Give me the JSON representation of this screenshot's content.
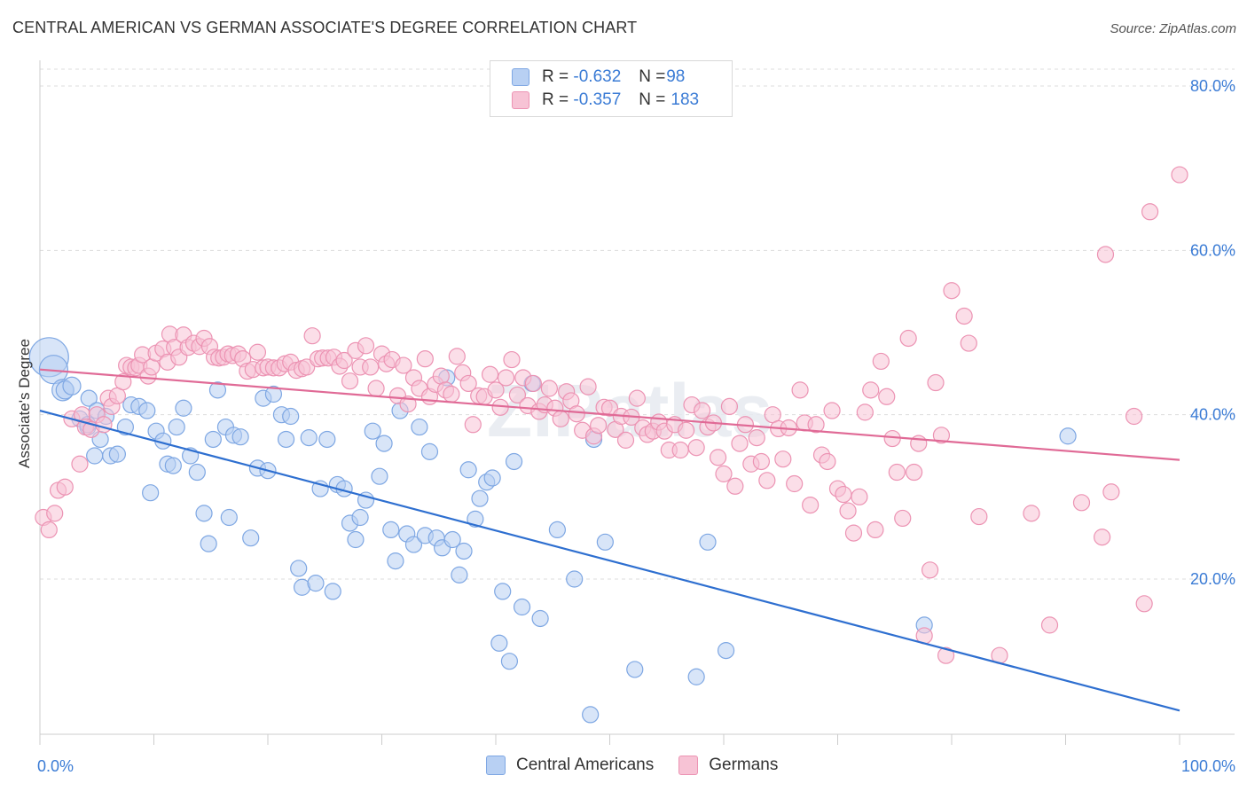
{
  "title": "CENTRAL AMERICAN VS GERMAN ASSOCIATE'S DEGREE CORRELATION CHART",
  "source": "Source: ZipAtlas.com",
  "watermark": "ZIPatlas",
  "legend": {
    "rows": [
      {
        "r_label": "R =",
        "r_value": "-0.632",
        "n_label": "N =",
        "n_value": "98"
      },
      {
        "r_label": "R =",
        "r_value": "-0.357",
        "n_label": "N =",
        "n_value": "183"
      }
    ]
  },
  "colors": {
    "blue_fill": "#b8d0f3",
    "blue_stroke": "#7ea7e3",
    "blue_line": "#2e6fd0",
    "pink_fill": "#f7c3d5",
    "pink_stroke": "#ec93b3",
    "pink_line": "#e06a96",
    "tick_label": "#3a7bd5",
    "grid": "#dddddd"
  },
  "chart_data": {
    "type": "scatter",
    "title": "CENTRAL AMERICAN VS GERMAN ASSOCIATE'S DEGREE CORRELATION CHART",
    "xlabel": "",
    "ylabel": "Associate's Degree",
    "xlim": [
      0,
      100
    ],
    "ylim": [
      0,
      82
    ],
    "x_tick_labels": [
      "0.0%",
      "100.0%"
    ],
    "y_ticks": [
      20,
      40,
      60,
      80
    ],
    "y_tick_labels": [
      "20.0%",
      "40.0%",
      "60.0%",
      "80.0%"
    ],
    "grid": "horizontal dashed",
    "legend_placement": "top-center",
    "series": [
      {
        "name": "Central Americans",
        "trend": {
          "x": [
            0,
            100
          ],
          "y": [
            40.5,
            4.0
          ]
        },
        "points": [
          [
            0.8,
            47,
            22
          ],
          [
            1.2,
            45.5,
            16
          ],
          [
            2,
            43,
            12
          ],
          [
            2.2,
            43,
            10
          ],
          [
            2.8,
            43.5,
            10
          ],
          [
            3.5,
            39.5,
            9
          ],
          [
            4.2,
            38.5,
            9
          ],
          [
            4.2,
            38.8,
            9
          ],
          [
            4.3,
            42,
            9
          ],
          [
            4.8,
            35,
            9
          ],
          [
            5,
            40.5,
            9
          ],
          [
            5.3,
            37,
            9
          ],
          [
            5.8,
            39.8,
            9
          ],
          [
            6.2,
            35,
            9
          ],
          [
            6.8,
            35.2,
            9
          ],
          [
            7.5,
            38.5,
            9
          ],
          [
            8,
            41.2,
            9
          ],
          [
            8.7,
            41,
            9
          ],
          [
            9.4,
            40.5,
            9
          ],
          [
            9.7,
            30.5,
            9
          ],
          [
            10.2,
            38,
            9
          ],
          [
            10.8,
            36.8,
            9
          ],
          [
            11.2,
            34,
            9
          ],
          [
            11.7,
            33.8,
            9
          ],
          [
            12,
            38.5,
            9
          ],
          [
            12.6,
            40.8,
            9
          ],
          [
            13.2,
            35,
            9
          ],
          [
            13.8,
            33,
            9
          ],
          [
            14.4,
            28,
            9
          ],
          [
            14.8,
            24.3,
            9
          ],
          [
            15.2,
            37,
            9
          ],
          [
            15.6,
            43,
            9
          ],
          [
            16.3,
            38.5,
            9
          ],
          [
            16.6,
            27.5,
            9
          ],
          [
            17,
            37.5,
            9
          ],
          [
            17.6,
            37.3,
            9
          ],
          [
            18.5,
            25,
            9
          ],
          [
            19.1,
            33.5,
            9
          ],
          [
            19.6,
            42,
            9
          ],
          [
            20,
            33.2,
            9
          ],
          [
            20.5,
            42.5,
            9
          ],
          [
            21.2,
            40,
            9
          ],
          [
            21.6,
            37,
            9
          ],
          [
            22,
            39.8,
            9
          ],
          [
            22.7,
            21.3,
            9
          ],
          [
            23,
            19,
            9
          ],
          [
            23.6,
            37.2,
            9
          ],
          [
            24.2,
            19.5,
            9
          ],
          [
            24.6,
            31,
            9
          ],
          [
            25.2,
            37,
            9
          ],
          [
            25.7,
            18.5,
            9
          ],
          [
            26.1,
            31.5,
            9
          ],
          [
            26.7,
            31,
            9
          ],
          [
            27.2,
            26.8,
            9
          ],
          [
            27.7,
            24.8,
            9
          ],
          [
            28.1,
            27.5,
            9
          ],
          [
            28.6,
            29.6,
            9
          ],
          [
            29.2,
            38,
            9
          ],
          [
            29.8,
            32.5,
            9
          ],
          [
            30.2,
            36.5,
            9
          ],
          [
            30.8,
            26,
            9
          ],
          [
            31.2,
            22.2,
            9
          ],
          [
            31.6,
            40.5,
            9
          ],
          [
            32.2,
            25.5,
            9
          ],
          [
            32.8,
            24.2,
            9
          ],
          [
            33.3,
            38.5,
            9
          ],
          [
            33.8,
            25.3,
            9
          ],
          [
            34.2,
            35.5,
            9
          ],
          [
            34.8,
            25,
            9
          ],
          [
            35.3,
            23.8,
            9
          ],
          [
            35.7,
            44.5,
            9
          ],
          [
            36.2,
            24.8,
            9
          ],
          [
            36.8,
            20.5,
            9
          ],
          [
            37.2,
            23.4,
            9
          ],
          [
            37.6,
            33.3,
            9
          ],
          [
            38.2,
            27.3,
            9
          ],
          [
            38.6,
            29.8,
            9
          ],
          [
            39.2,
            31.8,
            9
          ],
          [
            39.7,
            32.3,
            9
          ],
          [
            40.3,
            12.2,
            9
          ],
          [
            40.6,
            18.5,
            9
          ],
          [
            41.2,
            10,
            9
          ],
          [
            41.6,
            34.3,
            9
          ],
          [
            42.3,
            16.6,
            9
          ],
          [
            43.2,
            43.8,
            9
          ],
          [
            43.9,
            15.2,
            9
          ],
          [
            45.4,
            26,
            9
          ],
          [
            46.9,
            20,
            9
          ],
          [
            48.3,
            3.5,
            9
          ],
          [
            48.6,
            37,
            9
          ],
          [
            49.6,
            24.5,
            9
          ],
          [
            52.2,
            9,
            9
          ],
          [
            57.6,
            8.1,
            9
          ],
          [
            58.6,
            24.5,
            9
          ],
          [
            60.2,
            11.3,
            9
          ],
          [
            77.6,
            14.4,
            9
          ],
          [
            90.2,
            37.4,
            9
          ]
        ]
      },
      {
        "name": "Germans",
        "trend": {
          "x": [
            0,
            100
          ],
          "y": [
            45.5,
            34.5
          ]
        },
        "points": [
          [
            0.3,
            27.5
          ],
          [
            0.8,
            26
          ],
          [
            1.3,
            28
          ],
          [
            1.6,
            30.8
          ],
          [
            2.2,
            31.2
          ],
          [
            2.8,
            39.5
          ],
          [
            3.5,
            34
          ],
          [
            3.7,
            40
          ],
          [
            4,
            38.5
          ],
          [
            4.5,
            38.2
          ],
          [
            5,
            40
          ],
          [
            5.6,
            38.8
          ],
          [
            6,
            42
          ],
          [
            6.3,
            41
          ],
          [
            6.8,
            42.3
          ],
          [
            7.3,
            44
          ],
          [
            7.6,
            46
          ],
          [
            8,
            45.8
          ],
          [
            8.4,
            45.7
          ],
          [
            8.7,
            46
          ],
          [
            9,
            47.3
          ],
          [
            9.5,
            44.7
          ],
          [
            9.8,
            45.8
          ],
          [
            10.2,
            47.5
          ],
          [
            10.8,
            48
          ],
          [
            11.2,
            46.4
          ],
          [
            11.4,
            49.8
          ],
          [
            11.8,
            48.2
          ],
          [
            12.2,
            47
          ],
          [
            12.6,
            49.7
          ],
          [
            13,
            48.2
          ],
          [
            13.5,
            48.7
          ],
          [
            14,
            48.3
          ],
          [
            14.4,
            49.3
          ],
          [
            14.9,
            48.3
          ],
          [
            15.3,
            47
          ],
          [
            15.7,
            46.9
          ],
          [
            16.1,
            47
          ],
          [
            16.5,
            47.4
          ],
          [
            16.9,
            47.2
          ],
          [
            17.4,
            47.4
          ],
          [
            17.8,
            46.8
          ],
          [
            18.2,
            45.3
          ],
          [
            18.7,
            45.5
          ],
          [
            19.1,
            47.6
          ],
          [
            19.6,
            45.7
          ],
          [
            20,
            45.8
          ],
          [
            20.5,
            45.7
          ],
          [
            21,
            45.7
          ],
          [
            21.5,
            46.2
          ],
          [
            22,
            46.4
          ],
          [
            22.5,
            45.4
          ],
          [
            23,
            45.6
          ],
          [
            23.4,
            45.8
          ],
          [
            23.9,
            49.6
          ],
          [
            24.4,
            46.8
          ],
          [
            24.8,
            46.9
          ],
          [
            25.3,
            46.9
          ],
          [
            25.8,
            47
          ],
          [
            26.3,
            45.9
          ],
          [
            26.7,
            46.6
          ],
          [
            27.2,
            44.1
          ],
          [
            27.7,
            47.8
          ],
          [
            28.1,
            45.8
          ],
          [
            28.6,
            48.4
          ],
          [
            29,
            45.8
          ],
          [
            29.5,
            43.2
          ],
          [
            30,
            47.4
          ],
          [
            30.4,
            46.2
          ],
          [
            30.9,
            46.7
          ],
          [
            31.4,
            42.3
          ],
          [
            31.9,
            46
          ],
          [
            32.3,
            41.3
          ],
          [
            32.8,
            44.5
          ],
          [
            33.3,
            43.2
          ],
          [
            33.8,
            46.8
          ],
          [
            34.2,
            42.2
          ],
          [
            34.7,
            43.7
          ],
          [
            35.2,
            44.7
          ],
          [
            35.6,
            43
          ],
          [
            36.1,
            42.5
          ],
          [
            36.6,
            47.1
          ],
          [
            37.1,
            45.1
          ],
          [
            37.6,
            43.8
          ],
          [
            38,
            38.8
          ],
          [
            38.5,
            42.3
          ],
          [
            39,
            42.2
          ],
          [
            39.5,
            44.9
          ],
          [
            40,
            43
          ],
          [
            40.4,
            40.9
          ],
          [
            40.9,
            44.5
          ],
          [
            41.4,
            46.7
          ],
          [
            41.9,
            42.4
          ],
          [
            42.4,
            44.5
          ],
          [
            42.8,
            41.1
          ],
          [
            43.3,
            43.8
          ],
          [
            43.8,
            40.4
          ],
          [
            44.3,
            41.2
          ],
          [
            44.7,
            43.2
          ],
          [
            45.2,
            40.8
          ],
          [
            45.7,
            39.5
          ],
          [
            46.2,
            42.8
          ],
          [
            46.6,
            41.7
          ],
          [
            47.1,
            40.1
          ],
          [
            47.6,
            38.1
          ],
          [
            48.1,
            43.4
          ],
          [
            48.6,
            37.4
          ],
          [
            49,
            38.7
          ],
          [
            49.5,
            40.9
          ],
          [
            50,
            40.8
          ],
          [
            50.5,
            38.2
          ],
          [
            51,
            39.8
          ],
          [
            51.4,
            36.9
          ],
          [
            51.9,
            39.7
          ],
          [
            52.4,
            42
          ],
          [
            52.9,
            38.4
          ],
          [
            53.3,
            37.6
          ],
          [
            53.8,
            38
          ],
          [
            54.3,
            39.1
          ],
          [
            54.8,
            38
          ],
          [
            55.2,
            35.7
          ],
          [
            55.7,
            38.8
          ],
          [
            56.2,
            35.7
          ],
          [
            56.7,
            38.1
          ],
          [
            57.2,
            41.2
          ],
          [
            57.6,
            36
          ],
          [
            58.1,
            40.5
          ],
          [
            58.6,
            38.5
          ],
          [
            59.1,
            39
          ],
          [
            59.5,
            34.8
          ],
          [
            60,
            32.8
          ],
          [
            60.5,
            41
          ],
          [
            61,
            31.3
          ],
          [
            61.4,
            36.5
          ],
          [
            61.9,
            38.8
          ],
          [
            62.4,
            34
          ],
          [
            62.9,
            37.2
          ],
          [
            63.3,
            34.3
          ],
          [
            63.8,
            32
          ],
          [
            64.3,
            40
          ],
          [
            64.8,
            38.3
          ],
          [
            65.2,
            34.6
          ],
          [
            65.7,
            38.4
          ],
          [
            66.2,
            31.6
          ],
          [
            66.7,
            43
          ],
          [
            67.1,
            39
          ],
          [
            67.6,
            29
          ],
          [
            68.1,
            38.8
          ],
          [
            68.6,
            35.1
          ],
          [
            69.1,
            34.3
          ],
          [
            69.5,
            40.5
          ],
          [
            70,
            31
          ],
          [
            70.5,
            30.3
          ],
          [
            70.9,
            28.3
          ],
          [
            71.4,
            25.6
          ],
          [
            71.9,
            30
          ],
          [
            72.4,
            40.3
          ],
          [
            72.9,
            43
          ],
          [
            73.3,
            26
          ],
          [
            73.8,
            46.5
          ],
          [
            74.3,
            42.2
          ],
          [
            74.8,
            37.1
          ],
          [
            75.2,
            33
          ],
          [
            75.7,
            27.4
          ],
          [
            76.2,
            49.3
          ],
          [
            76.7,
            33
          ],
          [
            77.1,
            36.5
          ],
          [
            77.6,
            13.1
          ],
          [
            78.1,
            21.1
          ],
          [
            78.6,
            43.9
          ],
          [
            79.1,
            37.5
          ],
          [
            79.5,
            10.7
          ],
          [
            80,
            55.1
          ],
          [
            81.1,
            52
          ],
          [
            82.4,
            27.6
          ],
          [
            84.2,
            10.7
          ],
          [
            87,
            28
          ],
          [
            88.6,
            14.4
          ],
          [
            91.4,
            29.3
          ],
          [
            93.2,
            25.1
          ],
          [
            93.5,
            59.5
          ],
          [
            96.9,
            17
          ],
          [
            97.4,
            64.7
          ],
          [
            100,
            69.2
          ],
          [
            96,
            39.8
          ],
          [
            94,
            30.6
          ],
          [
            81.5,
            48.7
          ]
        ]
      }
    ]
  }
}
